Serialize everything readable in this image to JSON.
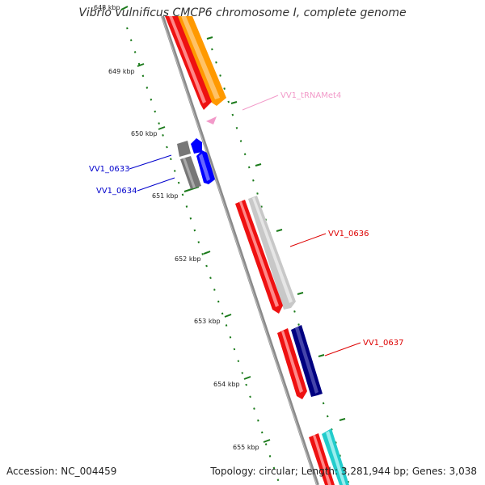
{
  "title": "Vibrio vulnificus CMCP6 chromosome I, complete genome",
  "accession_label": "Accession: NC_004459",
  "topology_info": "Topology: circular; Length: 3,281,944 bp; Genes: 3,038",
  "ruler": {
    "labels": [
      "648 kbp",
      "649 kbp",
      "650 kbp",
      "651 kbp",
      "652 kbp",
      "653 kbp",
      "654 kbp",
      "655 kbp"
    ]
  },
  "gene_labels": [
    {
      "name": "VV1_tRNAMet4",
      "color": "#f29ac9"
    },
    {
      "name": "VV1_0633",
      "color": "#0000cc"
    },
    {
      "name": "VV1_0634",
      "color": "#0000cc"
    },
    {
      "name": "VV1_0636",
      "color": "#dd0000"
    },
    {
      "name": "VV1_0637",
      "color": "#dd0000"
    }
  ],
  "colors": {
    "backbone": "#888888",
    "cds": "#ee1111",
    "trna": "#f29ac9",
    "ruler": "#1a7a1a",
    "orange": "#ff9900",
    "gray": "#777777",
    "light_gray": "#c8c8c8",
    "blue": "#0000ff",
    "navy": "#000080",
    "cyan": "#22cccc"
  }
}
